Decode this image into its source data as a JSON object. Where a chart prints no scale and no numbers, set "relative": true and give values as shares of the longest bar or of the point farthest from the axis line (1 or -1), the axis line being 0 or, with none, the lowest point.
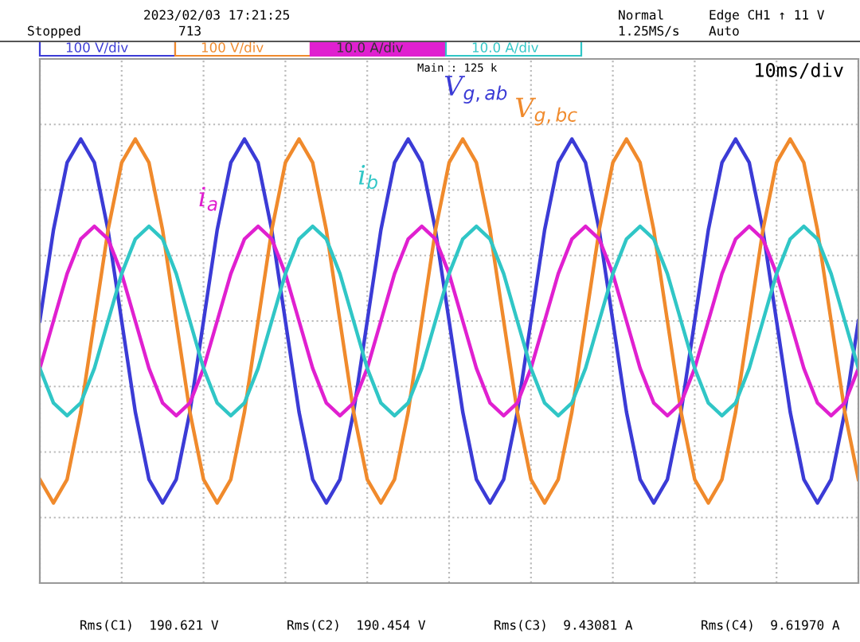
{
  "chart_data": {
    "type": "line",
    "relative": true,
    "grid": true,
    "legend": false,
    "marker": "none",
    "line_style": "solid",
    "categories": [
      null,
      null,
      null,
      null,
      null,
      null,
      null,
      null,
      null,
      null,
      null,
      null,
      null,
      null,
      null,
      null,
      null,
      null,
      null,
      null,
      null,
      null,
      null,
      null,
      null,
      null,
      null,
      null,
      null,
      null,
      null,
      null,
      null,
      null,
      null,
      null,
      null,
      null,
      null,
      null,
      null,
      null,
      null,
      null,
      null,
      null,
      null,
      null,
      null,
      null,
      null,
      null,
      null,
      null,
      null,
      null,
      null,
      null,
      null,
      null,
      null
    ],
    "series": [
      {
        "name": "V$_{g,ab}$",
        "color": "#3b3bd6",
        "values": [
          0,
          0.5,
          0.87,
          1,
          0.87,
          0.5,
          0,
          -0.5,
          -0.87,
          -1,
          -0.87,
          -0.5,
          0,
          0.5,
          0.87,
          1,
          0.87,
          0.5,
          0,
          -0.5,
          -0.87,
          -1,
          -0.87,
          -0.5,
          0,
          0.5,
          0.87,
          1,
          0.87,
          0.5,
          0,
          -0.5,
          -0.87,
          -1,
          -0.87,
          -0.5,
          0,
          0.5,
          0.87,
          1,
          0.87,
          0.5,
          0,
          -0.5,
          -0.87,
          -1,
          -0.87,
          -0.5,
          0,
          0.5,
          0.87,
          1,
          0.87,
          0.5,
          0,
          -0.5,
          -0.87,
          -1,
          -0.87,
          -0.5,
          0
        ]
      },
      {
        "name": "V$_{g,bc}$",
        "color": "#f08a2c",
        "values": [
          -0.87,
          -1,
          -0.87,
          -0.5,
          0,
          0.5,
          0.87,
          1,
          0.87,
          0.5,
          0,
          -0.5,
          -0.87,
          -1,
          -0.87,
          -0.5,
          0,
          0.5,
          0.87,
          1,
          0.87,
          0.5,
          0,
          -0.5,
          -0.87,
          -1,
          -0.87,
          -0.5,
          0,
          0.5,
          0.87,
          1,
          0.87,
          0.5,
          0,
          -0.5,
          -0.87,
          -1,
          -0.87,
          -0.5,
          0,
          0.5,
          0.87,
          1,
          0.87,
          0.5,
          0,
          -0.5,
          -0.87,
          -1,
          -0.87,
          -0.5,
          0,
          0.5,
          0.87,
          1,
          0.87,
          0.5,
          0,
          -0.5,
          -0.87
        ]
      },
      {
        "name": "i$_{a}$",
        "color": "#e020d0",
        "values": [
          -0.26,
          0,
          0.26,
          0.45,
          0.52,
          0.45,
          0.26,
          0,
          -0.26,
          -0.45,
          -0.52,
          -0.45,
          -0.26,
          0,
          0.26,
          0.45,
          0.52,
          0.45,
          0.26,
          0,
          -0.26,
          -0.45,
          -0.52,
          -0.45,
          -0.26,
          0,
          0.26,
          0.45,
          0.52,
          0.45,
          0.26,
          0,
          -0.26,
          -0.45,
          -0.52,
          -0.45,
          -0.26,
          0,
          0.26,
          0.45,
          0.52,
          0.45,
          0.26,
          0,
          -0.26,
          -0.45,
          -0.52,
          -0.45,
          -0.26,
          0,
          0.26,
          0.45,
          0.52,
          0.45,
          0.26,
          0,
          -0.26,
          -0.45,
          -0.52,
          -0.45,
          -0.26
        ]
      },
      {
        "name": "i$_{b}$",
        "color": "#30c6c6",
        "values": [
          -0.26,
          -0.45,
          -0.52,
          -0.45,
          -0.26,
          0,
          0.26,
          0.45,
          0.52,
          0.45,
          0.26,
          0,
          -0.26,
          -0.45,
          -0.52,
          -0.45,
          -0.26,
          0,
          0.26,
          0.45,
          0.52,
          0.45,
          0.26,
          0,
          -0.26,
          -0.45,
          -0.52,
          -0.45,
          -0.26,
          0,
          0.26,
          0.45,
          0.52,
          0.45,
          0.26,
          0,
          -0.26,
          -0.45,
          -0.52,
          -0.45,
          -0.26,
          0,
          0.26,
          0.45,
          0.52,
          0.45,
          0.26,
          0,
          -0.26,
          -0.45,
          -0.52,
          -0.45,
          -0.26,
          0,
          0.26,
          0.45,
          0.52,
          0.45,
          0.26,
          0,
          -0.26
        ]
      }
    ],
    "annotations": [
      "2023/02/03 17:21:25",
      "Stopped",
      "713",
      "Normal",
      "1.25MS/s",
      "Edge CH1 ↑ 11 V",
      "Auto",
      "100 V/div",
      "100 V/div",
      "10.0 A/div",
      "10.0 A/div",
      "Main : 125 k",
      "10ms/div",
      "Rms(C1)  190.621 V",
      "Rms(C2)  190.454 V",
      "Rms(C3)  9.43081 A",
      "Rms(C4)  9.61970 A"
    ]
  }
}
